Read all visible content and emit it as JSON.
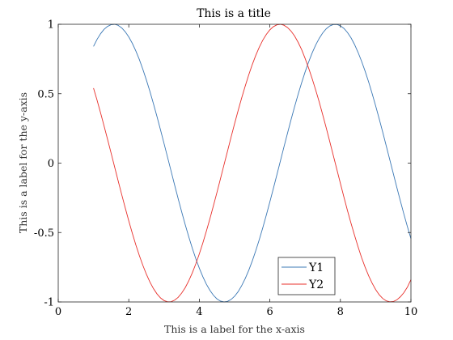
{
  "chart_data": {
    "type": "line",
    "title": "This is a title",
    "xlabel": "This is a label for the x-axis",
    "ylabel": "This is a label for the y-axis",
    "xlim": [
      0,
      10
    ],
    "ylim": [
      -1,
      1
    ],
    "xticks": [
      0,
      2,
      4,
      6,
      8,
      10
    ],
    "xtick_labels": [
      "0",
      "2",
      "4",
      "6",
      "8",
      "10"
    ],
    "yticks": [
      -1,
      -0.5,
      0,
      0.5,
      1
    ],
    "ytick_labels": [
      "-1",
      "-0.5",
      "0",
      "0.5",
      "1"
    ],
    "grid": false,
    "legend_position": "bottom-right",
    "series": [
      {
        "name": "Y1",
        "color": "#3b78b5",
        "x": [
          1.0,
          1.1,
          1.2,
          1.3,
          1.4,
          1.5,
          1.6,
          1.7,
          1.8,
          1.9,
          2.0,
          2.1,
          2.2,
          2.3,
          2.4,
          2.5,
          2.6,
          2.7,
          2.8,
          2.9,
          3.0,
          3.1,
          3.2,
          3.3,
          3.4,
          3.5,
          3.6,
          3.7,
          3.8,
          3.9,
          4.0,
          4.1,
          4.2,
          4.3,
          4.4,
          4.5,
          4.6,
          4.7,
          4.8,
          4.9,
          5.0,
          5.1,
          5.2,
          5.3,
          5.4,
          5.5,
          5.6,
          5.7,
          5.8,
          5.9,
          6.0,
          6.1,
          6.2,
          6.3,
          6.4,
          6.5,
          6.6,
          6.7,
          6.8,
          6.9,
          7.0,
          7.1,
          7.2,
          7.3,
          7.4,
          7.5,
          7.6,
          7.7,
          7.8,
          7.9,
          8.0,
          8.1,
          8.2,
          8.3,
          8.4,
          8.5,
          8.6,
          8.7,
          8.8,
          8.9,
          9.0,
          9.1,
          9.2,
          9.3,
          9.4,
          9.5,
          9.6,
          9.7,
          9.8,
          9.9,
          10.0
        ],
        "y": [
          0.841,
          0.891,
          0.932,
          0.964,
          0.985,
          0.997,
          1.0,
          0.992,
          0.974,
          0.946,
          0.909,
          0.863,
          0.808,
          0.746,
          0.675,
          0.598,
          0.516,
          0.427,
          0.335,
          0.239,
          0.141,
          0.042,
          -0.058,
          -0.158,
          -0.256,
          -0.351,
          -0.443,
          -0.53,
          -0.612,
          -0.688,
          -0.757,
          -0.818,
          -0.872,
          -0.916,
          -0.952,
          -0.978,
          -0.994,
          -1.0,
          -0.996,
          -0.982,
          -0.959,
          -0.926,
          -0.883,
          -0.832,
          -0.773,
          -0.706,
          -0.631,
          -0.551,
          -0.465,
          -0.374,
          -0.279,
          -0.182,
          -0.083,
          0.017,
          0.117,
          0.215,
          0.312,
          0.405,
          0.494,
          0.578,
          0.657,
          0.729,
          0.794,
          0.851,
          0.899,
          0.938,
          0.968,
          0.988,
          0.998,
          0.999,
          0.989,
          0.97,
          0.941,
          0.903,
          0.855,
          0.798,
          0.734,
          0.663,
          0.585,
          0.501,
          0.412,
          0.319,
          0.223,
          0.124,
          0.025,
          -0.075,
          -0.175,
          -0.272,
          -0.367,
          -0.458,
          -0.544
        ]
      },
      {
        "name": "Y2",
        "color": "#e8302b",
        "x": [
          1.0,
          1.1,
          1.2,
          1.3,
          1.4,
          1.5,
          1.6,
          1.7,
          1.8,
          1.9,
          2.0,
          2.1,
          2.2,
          2.3,
          2.4,
          2.5,
          2.6,
          2.7,
          2.8,
          2.9,
          3.0,
          3.1,
          3.2,
          3.3,
          3.4,
          3.5,
          3.6,
          3.7,
          3.8,
          3.9,
          4.0,
          4.1,
          4.2,
          4.3,
          4.4,
          4.5,
          4.6,
          4.7,
          4.8,
          4.9,
          5.0,
          5.1,
          5.2,
          5.3,
          5.4,
          5.5,
          5.6,
          5.7,
          5.8,
          5.9,
          6.0,
          6.1,
          6.2,
          6.3,
          6.4,
          6.5,
          6.6,
          6.7,
          6.8,
          6.9,
          7.0,
          7.1,
          7.2,
          7.3,
          7.4,
          7.5,
          7.6,
          7.7,
          7.8,
          7.9,
          8.0,
          8.1,
          8.2,
          8.3,
          8.4,
          8.5,
          8.6,
          8.7,
          8.8,
          8.9,
          9.0,
          9.1,
          9.2,
          9.3,
          9.4,
          9.5,
          9.6,
          9.7,
          9.8,
          9.9,
          10.0
        ],
        "y": [
          0.54,
          0.454,
          0.362,
          0.267,
          0.17,
          0.071,
          -0.029,
          -0.129,
          -0.227,
          -0.323,
          -0.416,
          -0.505,
          -0.589,
          -0.666,
          -0.737,
          -0.801,
          -0.857,
          -0.904,
          -0.942,
          -0.971,
          -0.99,
          -0.999,
          -0.998,
          -0.987,
          -0.967,
          -0.936,
          -0.897,
          -0.848,
          -0.791,
          -0.726,
          -0.654,
          -0.575,
          -0.49,
          -0.401,
          -0.307,
          -0.211,
          -0.112,
          -0.012,
          0.087,
          0.187,
          0.284,
          0.378,
          0.469,
          0.554,
          0.635,
          0.709,
          0.776,
          0.835,
          0.886,
          0.927,
          0.96,
          0.983,
          0.996,
          1.0,
          0.993,
          0.977,
          0.951,
          0.916,
          0.871,
          0.818,
          0.754,
          0.684,
          0.608,
          0.526,
          0.44,
          0.347,
          0.252,
          0.154,
          0.054,
          -0.046,
          -0.146,
          -0.245,
          -0.341,
          -0.432,
          -0.519,
          -0.602,
          -0.68,
          -0.749,
          -0.811,
          -0.865,
          -0.911,
          -0.948,
          -0.975,
          -0.992,
          -0.999,
          -0.997,
          -0.985,
          -0.963,
          -0.933,
          -0.893,
          -0.839
        ]
      }
    ]
  }
}
